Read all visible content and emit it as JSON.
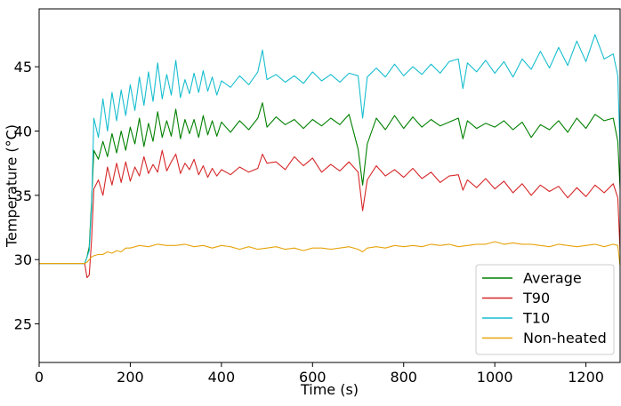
{
  "chart_data": {
    "type": "line",
    "xlabel": "Time (s)",
    "ylabel": "Temperature (°C)",
    "xlim": [
      0,
      1275
    ],
    "ylim": [
      22,
      49.5
    ],
    "xticks": [
      0,
      200,
      400,
      600,
      800,
      1000,
      1200
    ],
    "yticks": [
      25,
      30,
      35,
      40,
      45
    ],
    "grid": false,
    "legend_position": "lower-right",
    "series": [
      {
        "name": "Average",
        "color": "#008000",
        "x": [
          0,
          100,
          105,
          110,
          115,
          120,
          130,
          140,
          150,
          160,
          170,
          180,
          190,
          200,
          210,
          220,
          230,
          240,
          250,
          260,
          270,
          280,
          290,
          300,
          310,
          320,
          330,
          340,
          350,
          360,
          370,
          380,
          390,
          400,
          420,
          440,
          460,
          480,
          490,
          500,
          520,
          540,
          560,
          580,
          600,
          620,
          640,
          660,
          680,
          700,
          710,
          720,
          740,
          760,
          780,
          800,
          820,
          840,
          860,
          880,
          900,
          920,
          930,
          940,
          960,
          980,
          1000,
          1020,
          1040,
          1060,
          1080,
          1100,
          1120,
          1140,
          1160,
          1180,
          1200,
          1220,
          1240,
          1260,
          1270,
          1275
        ],
        "values": [
          29.7,
          29.7,
          30.2,
          31.0,
          34.5,
          38.5,
          37.8,
          39.2,
          38.0,
          39.8,
          38.3,
          40.0,
          38.5,
          40.3,
          39.0,
          41.0,
          38.8,
          40.6,
          39.2,
          41.5,
          39.5,
          40.8,
          39.6,
          41.7,
          39.4,
          40.9,
          39.8,
          40.9,
          39.5,
          41.2,
          39.7,
          40.8,
          39.6,
          40.7,
          39.9,
          40.8,
          40.1,
          41.0,
          42.2,
          40.3,
          41.1,
          40.5,
          40.9,
          40.2,
          40.9,
          40.4,
          41.0,
          40.5,
          41.3,
          38.6,
          35.8,
          39.0,
          41.0,
          40.1,
          41.2,
          40.2,
          41.1,
          40.3,
          40.9,
          40.4,
          40.7,
          41.0,
          39.4,
          40.8,
          40.2,
          40.6,
          40.3,
          40.8,
          40.1,
          40.7,
          39.5,
          40.5,
          40.1,
          40.8,
          39.9,
          41.0,
          40.2,
          41.3,
          40.8,
          41.0,
          39.2,
          35.5
        ]
      },
      {
        "name": "T90",
        "color": "#d62728",
        "x": [
          0,
          100,
          105,
          110,
          115,
          120,
          130,
          140,
          150,
          160,
          170,
          180,
          190,
          200,
          210,
          220,
          230,
          240,
          250,
          260,
          270,
          280,
          290,
          300,
          310,
          320,
          330,
          340,
          350,
          360,
          370,
          380,
          390,
          400,
          420,
          440,
          460,
          480,
          490,
          500,
          520,
          540,
          560,
          580,
          600,
          620,
          640,
          660,
          680,
          700,
          710,
          720,
          740,
          760,
          780,
          800,
          820,
          840,
          860,
          880,
          900,
          920,
          930,
          940,
          960,
          980,
          1000,
          1020,
          1040,
          1060,
          1080,
          1100,
          1120,
          1140,
          1160,
          1180,
          1200,
          1220,
          1240,
          1260,
          1270,
          1275
        ],
        "values": [
          29.7,
          29.7,
          28.6,
          28.8,
          31.5,
          35.5,
          36.2,
          35.0,
          37.2,
          35.8,
          37.5,
          36.0,
          37.6,
          36.1,
          37.2,
          36.5,
          38.0,
          36.7,
          37.4,
          36.8,
          38.5,
          36.9,
          37.6,
          38.2,
          36.7,
          37.5,
          37.0,
          37.8,
          36.6,
          37.3,
          36.4,
          37.1,
          36.5,
          37.0,
          36.6,
          37.2,
          36.8,
          37.1,
          38.2,
          37.5,
          37.6,
          37.0,
          38.0,
          37.3,
          37.9,
          36.8,
          37.4,
          36.9,
          37.6,
          36.8,
          33.8,
          36.2,
          37.3,
          36.5,
          37.0,
          36.4,
          37.1,
          36.3,
          36.8,
          36.0,
          36.5,
          36.6,
          35.4,
          36.2,
          35.6,
          36.3,
          35.5,
          36.1,
          35.2,
          35.9,
          35.0,
          35.8,
          35.3,
          35.7,
          34.8,
          35.6,
          34.9,
          35.8,
          35.2,
          35.9,
          34.8,
          30.6
        ]
      },
      {
        "name": "T10",
        "color": "#17becf",
        "x": [
          0,
          100,
          105,
          110,
          115,
          120,
          130,
          140,
          150,
          160,
          170,
          180,
          190,
          200,
          210,
          220,
          230,
          240,
          250,
          260,
          270,
          280,
          290,
          300,
          310,
          320,
          330,
          340,
          350,
          360,
          370,
          380,
          390,
          400,
          420,
          440,
          460,
          480,
          490,
          500,
          520,
          540,
          560,
          580,
          600,
          620,
          640,
          660,
          680,
          700,
          710,
          720,
          740,
          760,
          780,
          800,
          820,
          840,
          860,
          880,
          900,
          920,
          930,
          940,
          960,
          980,
          1000,
          1020,
          1040,
          1060,
          1080,
          1100,
          1120,
          1140,
          1160,
          1180,
          1200,
          1220,
          1240,
          1260,
          1270,
          1275
        ],
        "values": [
          29.7,
          29.7,
          30.2,
          30.7,
          34.0,
          41.0,
          39.5,
          42.5,
          40.0,
          43.0,
          40.8,
          43.2,
          41.2,
          43.6,
          41.6,
          44.2,
          42.0,
          44.6,
          42.3,
          45.3,
          42.5,
          44.4,
          42.8,
          45.5,
          42.6,
          44.0,
          42.9,
          44.5,
          43.0,
          44.7,
          43.1,
          44.2,
          42.8,
          43.9,
          43.4,
          44.3,
          43.6,
          44.6,
          46.3,
          44.0,
          44.4,
          43.8,
          44.3,
          43.7,
          44.6,
          43.9,
          44.4,
          43.8,
          44.5,
          44.3,
          41.0,
          44.2,
          44.9,
          44.2,
          45.2,
          44.3,
          45.0,
          44.4,
          45.2,
          44.5,
          45.4,
          45.6,
          43.3,
          45.3,
          44.6,
          45.5,
          44.5,
          45.4,
          44.2,
          45.6,
          44.8,
          46.2,
          44.9,
          46.5,
          45.1,
          47.0,
          45.4,
          47.5,
          45.6,
          46.0,
          44.3,
          38.5
        ]
      },
      {
        "name": "Non-heated",
        "color": "#e6a30b",
        "x": [
          0,
          100,
          105,
          110,
          115,
          120,
          130,
          140,
          150,
          160,
          170,
          180,
          190,
          200,
          220,
          240,
          260,
          280,
          300,
          320,
          340,
          360,
          380,
          400,
          420,
          440,
          460,
          480,
          500,
          520,
          540,
          560,
          580,
          600,
          620,
          640,
          660,
          680,
          700,
          710,
          720,
          740,
          760,
          780,
          800,
          820,
          840,
          860,
          880,
          900,
          920,
          940,
          960,
          980,
          1000,
          1020,
          1040,
          1060,
          1080,
          1100,
          1120,
          1140,
          1160,
          1180,
          1200,
          1220,
          1240,
          1260,
          1270,
          1275
        ],
        "values": [
          29.7,
          29.7,
          29.8,
          30.0,
          30.2,
          30.3,
          30.4,
          30.4,
          30.6,
          30.5,
          30.7,
          30.6,
          30.9,
          30.9,
          31.1,
          31.0,
          31.2,
          31.1,
          31.1,
          31.2,
          31.0,
          31.1,
          30.9,
          31.1,
          31.0,
          30.8,
          31.0,
          30.8,
          30.9,
          31.0,
          30.8,
          30.9,
          30.7,
          30.9,
          30.9,
          30.8,
          30.9,
          31.0,
          30.8,
          30.6,
          30.9,
          31.0,
          30.9,
          31.1,
          31.0,
          31.1,
          31.0,
          31.2,
          31.1,
          31.2,
          31.0,
          31.1,
          31.2,
          31.2,
          31.4,
          31.2,
          31.3,
          31.2,
          31.2,
          31.1,
          31.0,
          31.2,
          31.1,
          31.0,
          31.1,
          31.2,
          31.0,
          31.2,
          31.1,
          29.5
        ]
      }
    ]
  }
}
